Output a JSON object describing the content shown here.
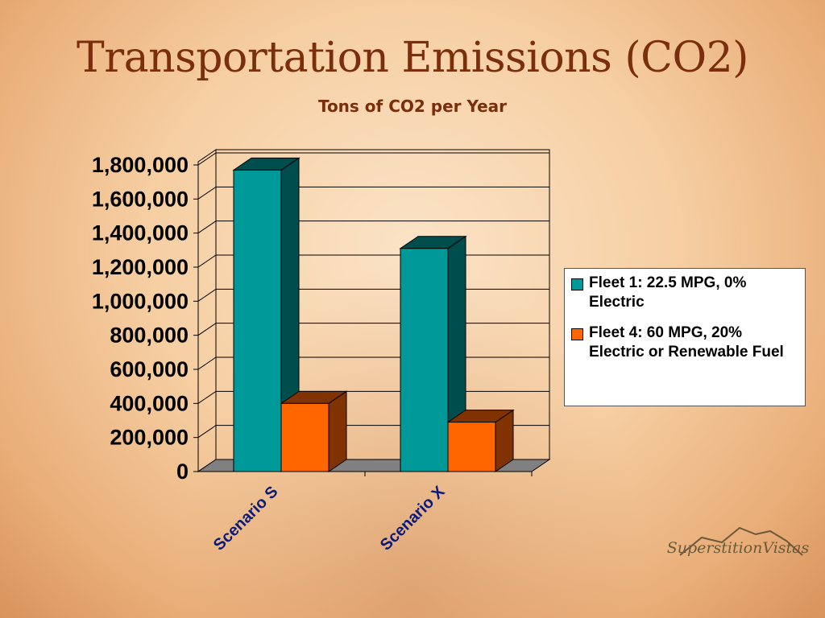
{
  "slide": {
    "title": "Transportation Emissions (CO2)",
    "subtitle": "Tons of CO2 per Year"
  },
  "logo": {
    "text": "SuperstitionVistas"
  },
  "colors": {
    "title": "#7a2e0b",
    "series1_front": "#009999",
    "series1_side": "#004d4d",
    "series2_front": "#ff6600",
    "series2_side": "#803300",
    "floor": "#808080",
    "x_tick_text": "#0b1a7a"
  },
  "chart_data": {
    "type": "bar",
    "title": "Transportation Emissions (CO2)",
    "subtitle": "Tons of CO2 per Year",
    "style": "3d-clustered",
    "categories": [
      "Scenario S",
      "Scenario X"
    ],
    "series": [
      {
        "name": "Fleet 1: 22.5 MPG, 0% Electric",
        "values": [
          1770000,
          1310000
        ],
        "color": "#009999"
      },
      {
        "name": "Fleet 4: 60 MPG, 20% Electric or Renewable Fuel",
        "values": [
          400000,
          290000
        ],
        "color": "#ff6600"
      }
    ],
    "ylim": [
      0,
      1800000
    ],
    "yticks": [
      "0",
      "200,000",
      "400,000",
      "600,000",
      "800,000",
      "1,000,000",
      "1,200,000",
      "1,400,000",
      "1,600,000",
      "1,800,000"
    ],
    "xlabel": "",
    "ylabel": "",
    "grid": true,
    "legend": "right"
  }
}
